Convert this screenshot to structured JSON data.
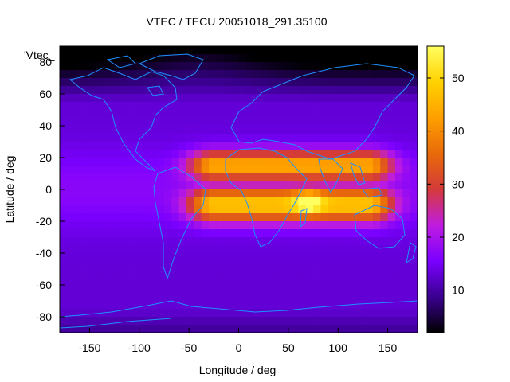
{
  "chart_data": {
    "type": "heatmap",
    "title": "VTEC / TECU 20051018_291.35100",
    "xlabel": "Longitude / deg",
    "ylabel": "Latitude / deg",
    "series_key": "'Vtec_",
    "xlim": [
      -180,
      180
    ],
    "ylim": [
      -90,
      90
    ],
    "x_ticks": [
      -150,
      -100,
      -50,
      0,
      50,
      100,
      150
    ],
    "y_ticks": [
      -80,
      -60,
      -40,
      -20,
      0,
      20,
      40,
      60,
      80
    ],
    "colorbar": {
      "range": [
        2,
        56
      ],
      "ticks": [
        10,
        20,
        30,
        40,
        50
      ],
      "palette": [
        "#000000",
        "#3a0090",
        "#7a00ff",
        "#c01ce0",
        "#d43a3a",
        "#e86a0a",
        "#ff9f00",
        "#ffd200",
        "#ffff60"
      ]
    },
    "features": {
      "background_level": 13,
      "equatorial_peak": {
        "lon": 70,
        "lat": -8,
        "value": 55
      },
      "anomaly_crest_north": {
        "lat": 15,
        "value": 42
      },
      "anomaly_crest_south": {
        "lat": -10,
        "value": 45
      },
      "enhanced_region_lon_range": [
        -25,
        130
      ],
      "polar_minimum_north": {
        "lon": -40,
        "lat": 80,
        "value": 3
      }
    },
    "grid": false,
    "legend": "colorbar right"
  }
}
